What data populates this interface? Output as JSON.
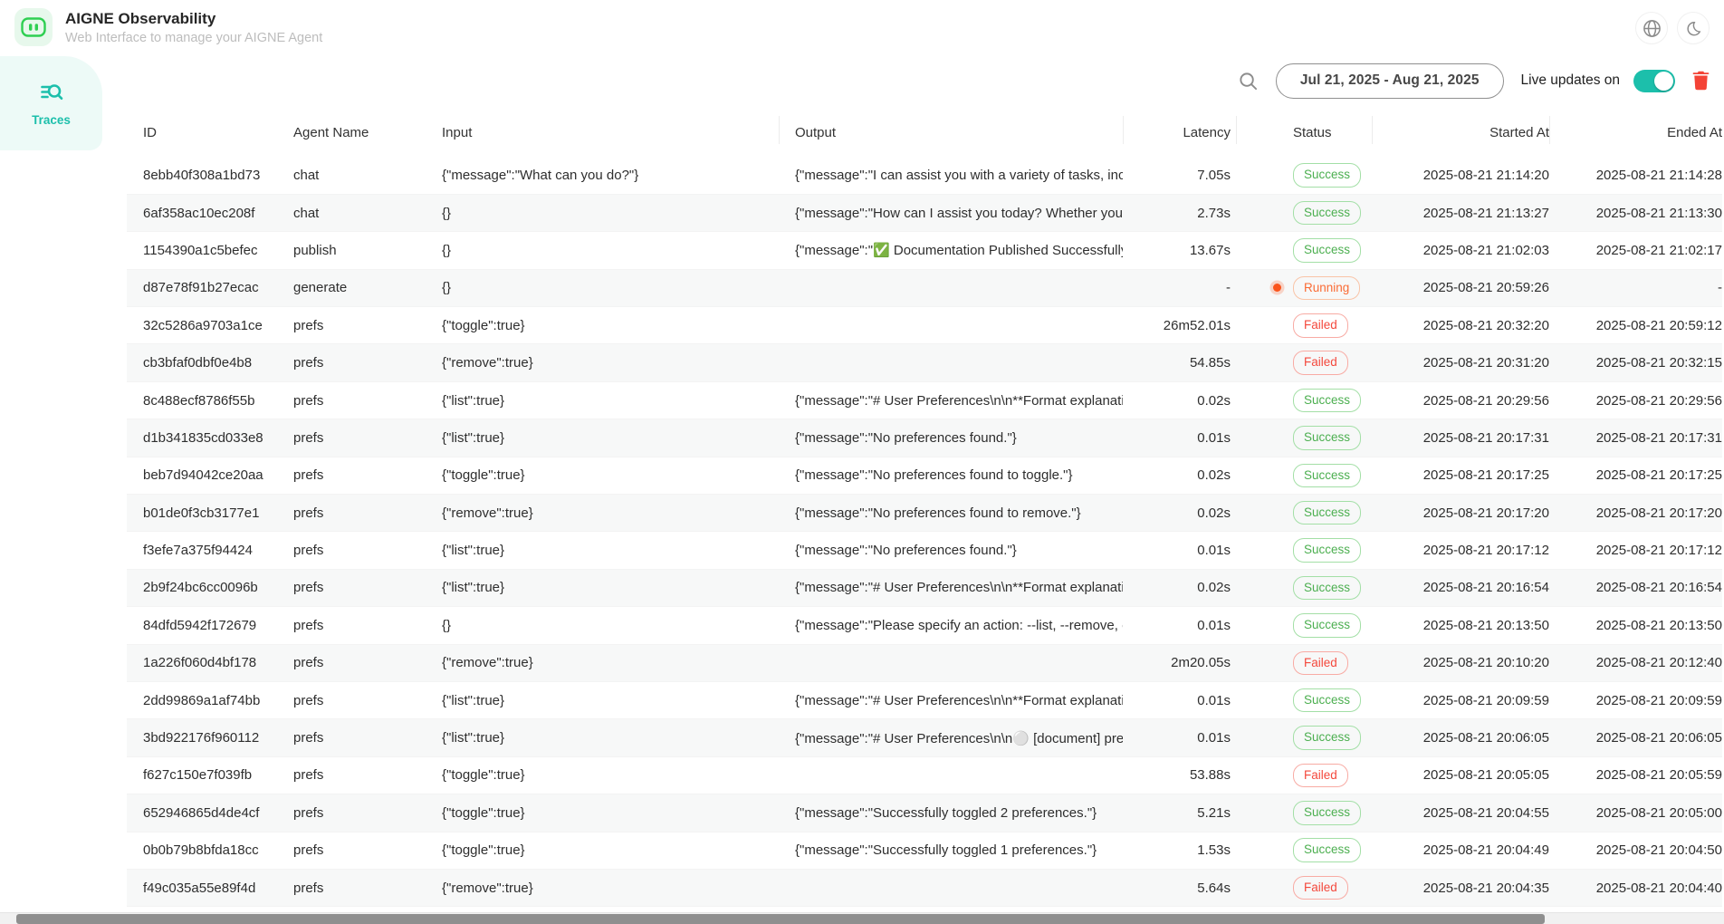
{
  "header": {
    "title": "AIGNE Observability",
    "subtitle": "Web Interface to manage your AIGNE Agent"
  },
  "sidebar": {
    "items": [
      {
        "label": "Traces",
        "active": true
      }
    ]
  },
  "toolbar": {
    "date_range": "Jul 21, 2025 - Aug 21, 2025",
    "live_updates_label": "Live updates on",
    "live_updates_enabled": true
  },
  "colors": {
    "accent": "#1cbfab",
    "success": "#4caf50",
    "failed": "#f4493d",
    "running": "#fa6b35",
    "trash": "#f44336",
    "logo_green": "#2fcf52"
  },
  "table": {
    "columns": [
      "ID",
      "Agent Name",
      "Input",
      "Output",
      "Latency",
      "Status",
      "Started At",
      "Ended At"
    ],
    "rows": [
      {
        "id": "8ebb40f308a1bd73",
        "agent": "chat",
        "input": "{\"message\":\"What can you do?\"}",
        "output": "{\"message\":\"I can assist you with a variety of tasks, incl...",
        "latency": "7.05s",
        "status": "Success",
        "started": "2025-08-21 21:14:20",
        "ended": "2025-08-21 21:14:28"
      },
      {
        "id": "6af358ac10ec208f",
        "agent": "chat",
        "input": "{}",
        "output": "{\"message\":\"How can I assist you today? Whether you ...",
        "latency": "2.73s",
        "status": "Success",
        "started": "2025-08-21 21:13:27",
        "ended": "2025-08-21 21:13:30"
      },
      {
        "id": "1154390a1c5befec",
        "agent": "publish",
        "input": "{}",
        "output": "{\"message\":\"✅ Documentation Published Successfully!\"}",
        "latency": "13.67s",
        "status": "Success",
        "started": "2025-08-21 21:02:03",
        "ended": "2025-08-21 21:02:17"
      },
      {
        "id": "d87e78f91b27ecac",
        "agent": "generate",
        "input": "{}",
        "output": "",
        "latency": "-",
        "status": "Running",
        "started": "2025-08-21 20:59:26",
        "ended": "-"
      },
      {
        "id": "32c5286a9703a1ce",
        "agent": "prefs",
        "input": "{\"toggle\":true}",
        "output": "",
        "latency": "26m52.01s",
        "status": "Failed",
        "started": "2025-08-21 20:32:20",
        "ended": "2025-08-21 20:59:12"
      },
      {
        "id": "cb3bfaf0dbf0e4b8",
        "agent": "prefs",
        "input": "{\"remove\":true}",
        "output": "",
        "latency": "54.85s",
        "status": "Failed",
        "started": "2025-08-21 20:31:20",
        "ended": "2025-08-21 20:32:15"
      },
      {
        "id": "8c488ecf8786f55b",
        "agent": "prefs",
        "input": "{\"list\":true}",
        "output": "{\"message\":\"# User Preferences\\n\\n**Format explanati...",
        "latency": "0.02s",
        "status": "Success",
        "started": "2025-08-21 20:29:56",
        "ended": "2025-08-21 20:29:56"
      },
      {
        "id": "d1b341835cd033e8",
        "agent": "prefs",
        "input": "{\"list\":true}",
        "output": "{\"message\":\"No preferences found.\"}",
        "latency": "0.01s",
        "status": "Success",
        "started": "2025-08-21 20:17:31",
        "ended": "2025-08-21 20:17:31"
      },
      {
        "id": "beb7d94042ce20aa",
        "agent": "prefs",
        "input": "{\"toggle\":true}",
        "output": "{\"message\":\"No preferences found to toggle.\"}",
        "latency": "0.02s",
        "status": "Success",
        "started": "2025-08-21 20:17:25",
        "ended": "2025-08-21 20:17:25"
      },
      {
        "id": "b01de0f3cb3177e1",
        "agent": "prefs",
        "input": "{\"remove\":true}",
        "output": "{\"message\":\"No preferences found to remove.\"}",
        "latency": "0.02s",
        "status": "Success",
        "started": "2025-08-21 20:17:20",
        "ended": "2025-08-21 20:17:20"
      },
      {
        "id": "f3efe7a375f94424",
        "agent": "prefs",
        "input": "{\"list\":true}",
        "output": "{\"message\":\"No preferences found.\"}",
        "latency": "0.01s",
        "status": "Success",
        "started": "2025-08-21 20:17:12",
        "ended": "2025-08-21 20:17:12"
      },
      {
        "id": "2b9f24bc6cc0096b",
        "agent": "prefs",
        "input": "{\"list\":true}",
        "output": "{\"message\":\"# User Preferences\\n\\n**Format explanati...",
        "latency": "0.02s",
        "status": "Success",
        "started": "2025-08-21 20:16:54",
        "ended": "2025-08-21 20:16:54"
      },
      {
        "id": "84dfd5942f172679",
        "agent": "prefs",
        "input": "{}",
        "output": "{\"message\":\"Please specify an action: --list, --remove, or...",
        "latency": "0.01s",
        "status": "Success",
        "started": "2025-08-21 20:13:50",
        "ended": "2025-08-21 20:13:50"
      },
      {
        "id": "1a226f060d4bf178",
        "agent": "prefs",
        "input": "{\"remove\":true}",
        "output": "",
        "latency": "2m20.05s",
        "status": "Failed",
        "started": "2025-08-21 20:10:20",
        "ended": "2025-08-21 20:12:40"
      },
      {
        "id": "2dd99869a1af74bb",
        "agent": "prefs",
        "input": "{\"list\":true}",
        "output": "{\"message\":\"# User Preferences\\n\\n**Format explanati...",
        "latency": "0.01s",
        "status": "Success",
        "started": "2025-08-21 20:09:59",
        "ended": "2025-08-21 20:09:59"
      },
      {
        "id": "3bd922176f960112",
        "agent": "prefs",
        "input": "{\"list\":true}",
        "output": "{\"message\":\"# User Preferences\\n\\n⚪ [document] pref...",
        "latency": "0.01s",
        "status": "Success",
        "started": "2025-08-21 20:06:05",
        "ended": "2025-08-21 20:06:05"
      },
      {
        "id": "f627c150e7f039fb",
        "agent": "prefs",
        "input": "{\"toggle\":true}",
        "output": "",
        "latency": "53.88s",
        "status": "Failed",
        "started": "2025-08-21 20:05:05",
        "ended": "2025-08-21 20:05:59"
      },
      {
        "id": "652946865d4de4cf",
        "agent": "prefs",
        "input": "{\"toggle\":true}",
        "output": "{\"message\":\"Successfully toggled 2 preferences.\"}",
        "latency": "5.21s",
        "status": "Success",
        "started": "2025-08-21 20:04:55",
        "ended": "2025-08-21 20:05:00"
      },
      {
        "id": "0b0b79b8bfda18cc",
        "agent": "prefs",
        "input": "{\"toggle\":true}",
        "output": "{\"message\":\"Successfully toggled 1 preferences.\"}",
        "latency": "1.53s",
        "status": "Success",
        "started": "2025-08-21 20:04:49",
        "ended": "2025-08-21 20:04:50"
      },
      {
        "id": "f49c035a55e89f4d",
        "agent": "prefs",
        "input": "{\"remove\":true}",
        "output": "",
        "latency": "5.64s",
        "status": "Failed",
        "started": "2025-08-21 20:04:35",
        "ended": "2025-08-21 20:04:40"
      }
    ]
  }
}
